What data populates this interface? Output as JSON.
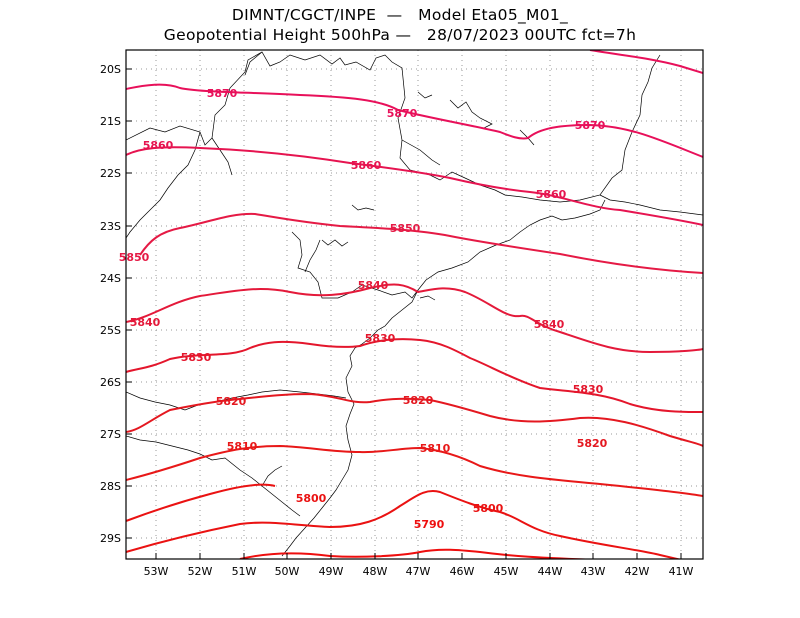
{
  "title_line1": "DIMNT/CGCT/INPE  —   Model Eta05_M01_",
  "title_line2": "Geopotential Height 500hPa —   28/07/2023 00UTC fct=7h",
  "lon_ticks": [
    "53W",
    "52W",
    "51W",
    "50W",
    "49W",
    "48W",
    "47W",
    "46W",
    "45W",
    "44W",
    "43W",
    "42W",
    "41W"
  ],
  "lat_ticks": [
    "20S",
    "21S",
    "22S",
    "23S",
    "24S",
    "25S",
    "26S",
    "27S",
    "28S",
    "29S"
  ],
  "contour_labels": [
    "5870",
    "5870",
    "5870",
    "5860",
    "5860",
    "5860",
    "5850",
    "5850",
    "5840",
    "5840",
    "5840",
    "5830",
    "5830",
    "5830",
    "5820",
    "5820",
    "5820",
    "5810",
    "5810",
    "5800",
    "5800",
    "5790"
  ],
  "colors": {
    "c5870": "#e8105a",
    "c5860": "#e61450",
    "c5850": "#e51a45",
    "c5840": "#e4193a",
    "c5830": "#e4162c",
    "c5820": "#e41820",
    "c5810": "#e81818",
    "c5800": "#ea1212",
    "c5790": "#ee0e0e",
    "coast": "#000000",
    "grid": "#9a9a9a"
  }
}
